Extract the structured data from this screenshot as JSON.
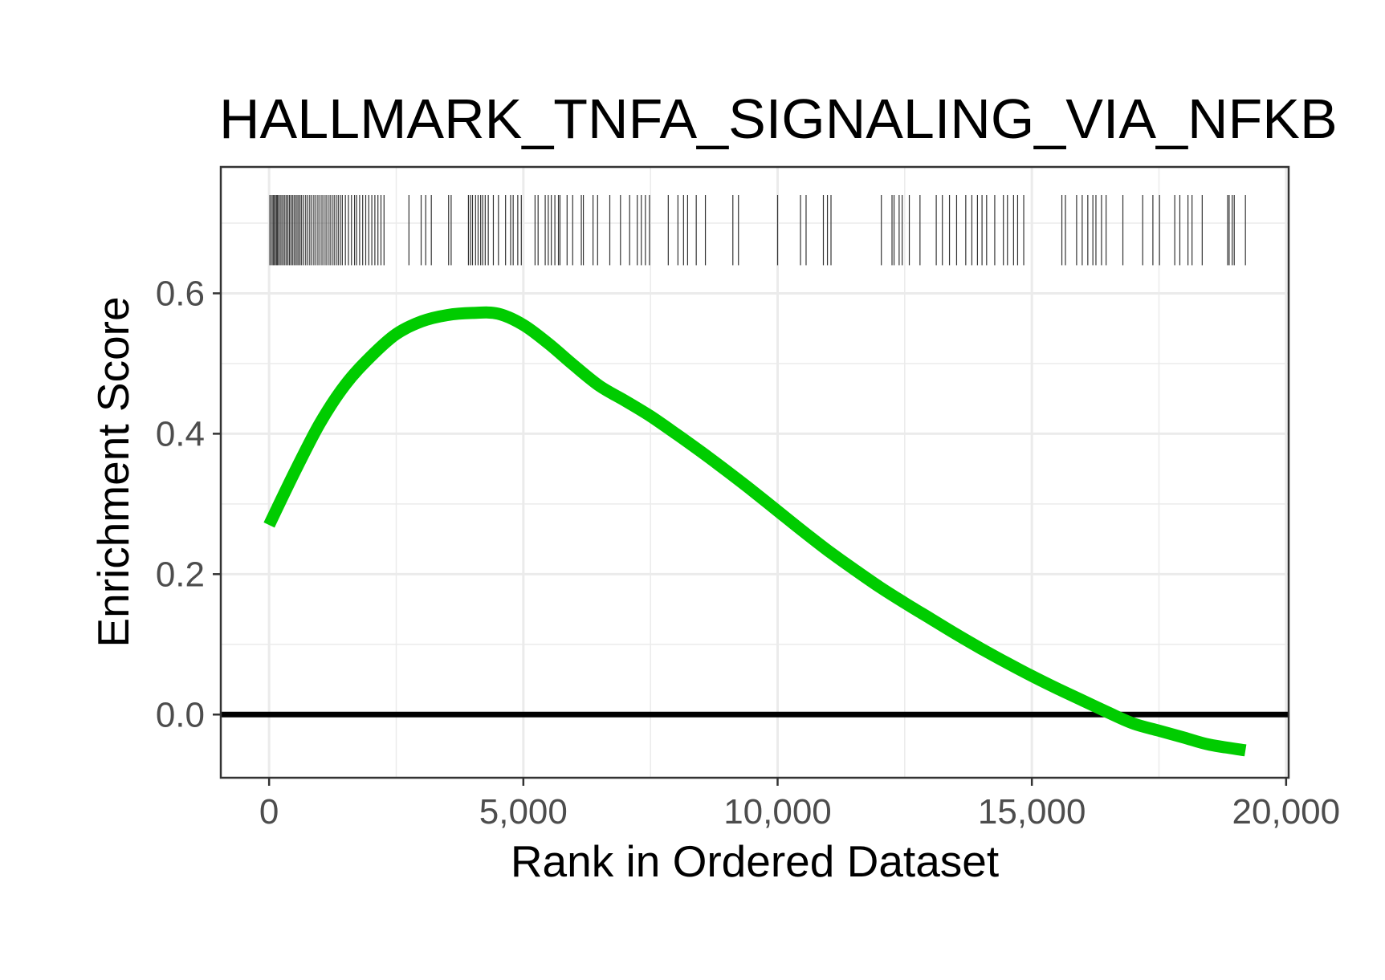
{
  "chart_data": {
    "type": "line",
    "title": "HALLMARK_TNFA_SIGNALING_VIA_NFKB",
    "xlabel": "Rank in Ordered Dataset",
    "ylabel": "Enrichment Score",
    "xlim": [
      -950,
      20050
    ],
    "ylim": [
      -0.09,
      0.78
    ],
    "xticks": [
      0,
      5000,
      10000,
      15000,
      20000
    ],
    "xtick_labels": [
      "0",
      "5,000",
      "10,000",
      "15,000",
      "20,000"
    ],
    "yticks": [
      0.0,
      0.2,
      0.4,
      0.6
    ],
    "ytick_labels": [
      "0.0",
      "0.2",
      "0.4",
      "0.6"
    ],
    "grid": true,
    "reference_line": 0.0,
    "series": [
      {
        "color": "#00cc00",
        "x": [
          0,
          500,
          1000,
          1500,
          2000,
          2500,
          3000,
          3500,
          4000,
          4500,
          5000,
          5500,
          6000,
          6500,
          7000,
          7500,
          8000,
          8500,
          9000,
          9500,
          10000,
          10500,
          11000,
          11500,
          12000,
          12500,
          13000,
          13500,
          14000,
          14500,
          15000,
          15500,
          16000,
          16500,
          17000,
          17500,
          18000,
          18500,
          19200
        ],
        "y": [
          0.27,
          0.345,
          0.415,
          0.47,
          0.51,
          0.542,
          0.56,
          0.569,
          0.572,
          0.571,
          0.555,
          0.528,
          0.497,
          0.468,
          0.447,
          0.425,
          0.4,
          0.374,
          0.347,
          0.319,
          0.29,
          0.261,
          0.233,
          0.207,
          0.182,
          0.159,
          0.137,
          0.115,
          0.094,
          0.074,
          0.055,
          0.037,
          0.02,
          0.003,
          -0.013,
          -0.023,
          -0.033,
          -0.043,
          -0.051
        ]
      }
    ],
    "hit_positions": [
      15,
      45,
      75,
      95,
      120,
      145,
      165,
      190,
      220,
      250,
      280,
      310,
      340,
      370,
      400,
      430,
      460,
      490,
      520,
      550,
      580,
      610,
      640,
      680,
      720,
      760,
      800,
      840,
      880,
      920,
      960,
      1000,
      1040,
      1080,
      1120,
      1160,
      1200,
      1240,
      1280,
      1320,
      1360,
      1400,
      1440,
      1500,
      1560,
      1620,
      1680,
      1720,
      1780,
      1840,
      1900,
      1960,
      2020,
      2080,
      2140,
      2200,
      2260,
      2750,
      2990,
      3080,
      3190,
      3530,
      3580,
      3920,
      3960,
      4000,
      4060,
      4110,
      4160,
      4200,
      4250,
      4310,
      4410,
      4510,
      4650,
      4750,
      4800,
      4890,
      4960,
      5230,
      5290,
      5430,
      5490,
      5550,
      5620,
      5690,
      5720,
      5860,
      5970,
      6140,
      6180,
      6370,
      6460,
      6700,
      6910,
      7090,
      7240,
      7320,
      7400,
      7480,
      7850,
      8040,
      8150,
      8230,
      8400,
      8580,
      9120,
      9230,
      10000,
      10450,
      10560,
      10900,
      10980,
      11050,
      12040,
      12250,
      12290,
      12390,
      12450,
      12590,
      12800,
      13120,
      13240,
      13380,
      13520,
      13700,
      13820,
      13930,
      14020,
      14110,
      14270,
      14440,
      14520,
      14640,
      14720,
      14840,
      15590,
      15660,
      15880,
      15990,
      16100,
      16200,
      16260,
      16370,
      16460,
      16790,
      17180,
      17380,
      17510,
      17810,
      17910,
      18070,
      18150,
      18350,
      18850,
      18880,
      18940,
      18980,
      19200
    ]
  }
}
